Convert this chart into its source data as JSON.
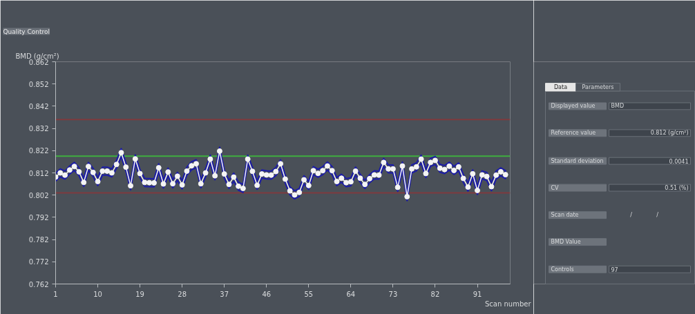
{
  "chart_data": [
    {
      "type": "line",
      "title": "Quality Control",
      "xlabel": "Scan number",
      "ylabel": "BMD (g/cm²)",
      "xlim": [
        1,
        98
      ],
      "ylim": [
        0.762,
        0.862
      ],
      "xticks": [
        1,
        10,
        19,
        28,
        37,
        46,
        55,
        64,
        73,
        82,
        91
      ],
      "yticks": [
        0.762,
        0.772,
        0.782,
        0.792,
        0.802,
        0.812,
        0.822,
        0.832,
        0.842,
        0.852,
        0.862
      ],
      "grid": false,
      "marker": "circle",
      "line_style": "solid",
      "x": [
        1,
        2,
        3,
        4,
        5,
        6,
        7,
        8,
        9,
        10,
        11,
        12,
        13,
        14,
        15,
        16,
        17,
        18,
        19,
        20,
        21,
        22,
        23,
        24,
        25,
        26,
        27,
        28,
        29,
        30,
        31,
        32,
        33,
        34,
        35,
        36,
        37,
        38,
        39,
        40,
        41,
        42,
        43,
        44,
        45,
        46,
        47,
        48,
        49,
        50,
        51,
        52,
        53,
        54,
        55,
        56,
        57,
        58,
        59,
        60,
        61,
        62,
        63,
        64,
        65,
        66,
        67,
        68,
        69,
        70,
        71,
        72,
        73,
        74,
        75,
        76,
        77,
        78,
        79,
        80,
        81,
        82,
        83,
        84,
        85,
        86,
        87,
        88,
        89,
        90,
        91,
        92,
        93,
        94,
        95,
        96,
        97
      ],
      "series": [
        {
          "color": "#f4f4f4",
          "values": [
            0.8101,
            0.812,
            0.811,
            0.8133,
            0.8149,
            0.8125,
            0.8077,
            0.8149,
            0.8122,
            0.8081,
            0.8128,
            0.8128,
            0.812,
            0.8158,
            0.8211,
            0.8146,
            0.8062,
            0.8183,
            0.8117,
            0.8077,
            0.8076,
            0.8075,
            0.8143,
            0.807,
            0.8124,
            0.8071,
            0.8105,
            0.8066,
            0.8128,
            0.8152,
            0.8161,
            0.8071,
            0.812,
            0.8182,
            0.8107,
            0.8218,
            0.8115,
            0.8068,
            0.8101,
            0.806,
            0.805,
            0.8182,
            0.8127,
            0.8064,
            0.8115,
            0.8111,
            0.811,
            0.8126,
            0.8161,
            0.8092,
            0.8039,
            0.8021,
            0.8032,
            0.8089,
            0.8063,
            0.813,
            0.8118,
            0.813,
            0.8151,
            0.813,
            0.8081,
            0.8096,
            0.8076,
            0.808,
            0.8128,
            0.8096,
            0.8068,
            0.8094,
            0.8111,
            0.811,
            0.8167,
            0.8138,
            0.8138,
            0.8055,
            0.8151,
            0.8013,
            0.8138,
            0.8147,
            0.8182,
            0.8117,
            0.8167,
            0.8176,
            0.8141,
            0.8135,
            0.815,
            0.8131,
            0.8147,
            0.8095,
            0.8056,
            0.8116,
            0.8041,
            0.8111,
            0.8104,
            0.8058,
            0.811,
            0.8125,
            0.8112
          ],
          "upper": [
            0.8119,
            0.8138,
            0.8128,
            0.8151,
            0.8167,
            0.8143,
            0.8095,
            0.8167,
            0.814,
            0.8099,
            0.8146,
            0.8146,
            0.8138,
            0.8176,
            0.8229,
            0.8164,
            0.808,
            0.8201,
            0.8135,
            0.8095,
            0.8094,
            0.8093,
            0.8161,
            0.8088,
            0.8142,
            0.8089,
            0.8123,
            0.8084,
            0.8146,
            0.817,
            0.8179,
            0.8089,
            0.8138,
            0.82,
            0.8125,
            0.8236,
            0.8133,
            0.8086,
            0.8119,
            0.8078,
            0.8068,
            0.82,
            0.8145,
            0.8082,
            0.8133,
            0.8129,
            0.8128,
            0.8144,
            0.8179,
            0.811,
            0.8057,
            0.8039,
            0.805,
            0.8107,
            0.8081,
            0.8148,
            0.8136,
            0.8148,
            0.8169,
            0.8148,
            0.8099,
            0.8114,
            0.8094,
            0.8098,
            0.8146,
            0.8114,
            0.8086,
            0.8112,
            0.8129,
            0.8128,
            0.8185,
            0.8156,
            0.8156,
            0.8073,
            0.8169,
            0.8031,
            0.8156,
            0.8165,
            0.82,
            0.8135,
            0.8185,
            0.8194,
            0.8159,
            0.8153,
            0.8168,
            0.8149,
            0.8165,
            0.8113,
            0.8074,
            0.8134,
            0.8059,
            0.8129,
            0.8122,
            0.8076,
            0.8128,
            0.8143,
            0.813
          ],
          "lower": [
            0.8083,
            0.8102,
            0.8092,
            0.8115,
            0.8131,
            0.8107,
            0.8059,
            0.8131,
            0.8104,
            0.8063,
            0.811,
            0.811,
            0.8102,
            0.814,
            0.8193,
            0.8128,
            0.8044,
            0.8165,
            0.8099,
            0.8059,
            0.8058,
            0.8057,
            0.8125,
            0.8052,
            0.8106,
            0.8053,
            0.8087,
            0.8048,
            0.811,
            0.8134,
            0.8143,
            0.8053,
            0.8102,
            0.8164,
            0.8089,
            0.82,
            0.8097,
            0.805,
            0.8083,
            0.8042,
            0.8032,
            0.8164,
            0.8109,
            0.8046,
            0.8097,
            0.8093,
            0.8092,
            0.8108,
            0.8143,
            0.8074,
            0.8021,
            0.8003,
            0.8014,
            0.8071,
            0.8045,
            0.8112,
            0.81,
            0.8112,
            0.8133,
            0.8112,
            0.8063,
            0.8078,
            0.8058,
            0.8062,
            0.811,
            0.8078,
            0.805,
            0.8076,
            0.8093,
            0.8092,
            0.8149,
            0.812,
            0.812,
            0.8037,
            0.8133,
            0.7995,
            0.812,
            0.8129,
            0.8164,
            0.8099,
            0.8149,
            0.8158,
            0.8123,
            0.8117,
            0.8132,
            0.8113,
            0.8129,
            0.8077,
            0.8038,
            0.8098,
            0.8023,
            0.8093,
            0.8086,
            0.804,
            0.8092,
            0.8107,
            0.8094
          ]
        }
      ],
      "ref_lines": [
        {
          "axis": "y",
          "value": 0.836,
          "color": "#7e3a3e"
        },
        {
          "axis": "y",
          "value": 0.8195,
          "color": "#3fae3f"
        },
        {
          "axis": "y",
          "value": 0.803,
          "color": "#7e3a3e"
        }
      ]
    },
    {
      "type": "other",
      "annotations": [
        "Data",
        "Parameters",
        "Displayed value",
        "BMD",
        "Reference value",
        "0.812 (g/cm²)",
        "Standard deviation",
        "0.0041",
        "CV",
        "0.51 (%)",
        "Scan date",
        "/",
        "/",
        "BMD Value",
        "Controls",
        "97"
      ]
    }
  ]
}
